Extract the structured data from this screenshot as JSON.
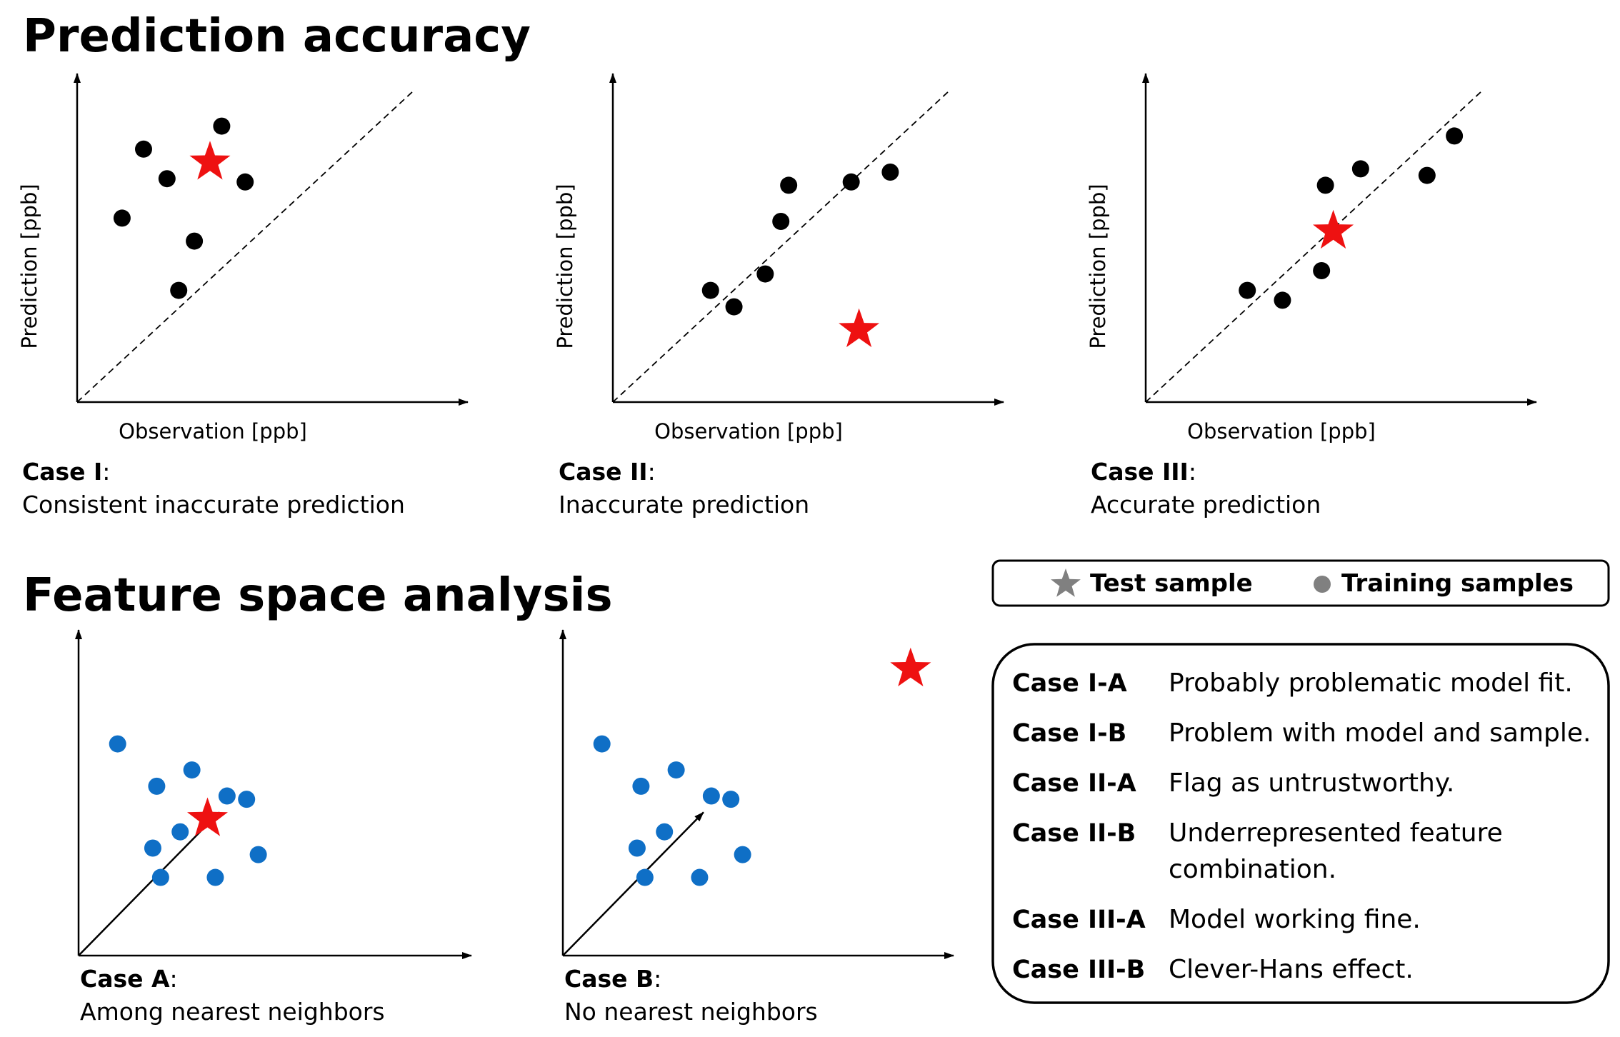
{
  "prediction": {
    "title": "Prediction accuracy",
    "panels": [
      {
        "xlabel": "Observation [ppb]",
        "ylabel": "Prediction [ppb]",
        "case_name": "Case I",
        "case_desc": "Consistent inaccurate prediction",
        "points": [
          [
            0.115,
            0.56
          ],
          [
            0.17,
            0.77
          ],
          [
            0.23,
            0.68
          ],
          [
            0.3,
            0.49
          ],
          [
            0.37,
            0.84
          ],
          [
            0.43,
            0.67
          ],
          [
            0.26,
            0.34
          ]
        ],
        "star": [
          0.34,
          0.73
        ]
      },
      {
        "xlabel": "Observation [ppb]",
        "ylabel": "Prediction [ppb]",
        "case_name": "Case II",
        "case_desc": "Inaccurate prediction",
        "points": [
          [
            0.25,
            0.34
          ],
          [
            0.31,
            0.29
          ],
          [
            0.39,
            0.39
          ],
          [
            0.43,
            0.55
          ],
          [
            0.45,
            0.66
          ],
          [
            0.61,
            0.67
          ],
          [
            0.71,
            0.7
          ]
        ],
        "star": [
          0.63,
          0.22
        ]
      },
      {
        "xlabel": "Observation [ppb]",
        "ylabel": "Prediction [ppb]",
        "case_name": "Case III",
        "case_desc": "Accurate prediction",
        "points": [
          [
            0.26,
            0.34
          ],
          [
            0.35,
            0.31
          ],
          [
            0.45,
            0.4
          ],
          [
            0.46,
            0.66
          ],
          [
            0.55,
            0.71
          ],
          [
            0.72,
            0.69
          ],
          [
            0.79,
            0.81
          ]
        ],
        "star": [
          0.48,
          0.52
        ]
      }
    ]
  },
  "feature": {
    "title": "Feature space analysis",
    "panels": [
      {
        "case_name": "Case A",
        "case_desc": "Among nearest neighbors",
        "points": [
          [
            0.1,
            0.65
          ],
          [
            0.2,
            0.52
          ],
          [
            0.29,
            0.57
          ],
          [
            0.38,
            0.49
          ],
          [
            0.43,
            0.48
          ],
          [
            0.26,
            0.38
          ],
          [
            0.19,
            0.33
          ],
          [
            0.21,
            0.24
          ],
          [
            0.35,
            0.24
          ],
          [
            0.46,
            0.31
          ]
        ],
        "star": [
          0.33,
          0.42
        ],
        "arrow_to": [
          0.36,
          0.44
        ]
      },
      {
        "case_name": "Case B",
        "case_desc": "No nearest neighbors",
        "points": [
          [
            0.1,
            0.65
          ],
          [
            0.2,
            0.52
          ],
          [
            0.29,
            0.57
          ],
          [
            0.38,
            0.49
          ],
          [
            0.43,
            0.48
          ],
          [
            0.26,
            0.38
          ],
          [
            0.19,
            0.33
          ],
          [
            0.21,
            0.24
          ],
          [
            0.35,
            0.24
          ],
          [
            0.46,
            0.31
          ]
        ],
        "star": [
          0.89,
          0.88
        ],
        "arrow_to": [
          0.36,
          0.44
        ]
      }
    ]
  },
  "legend": {
    "test_label": "Test sample",
    "train_label": "Training samples",
    "test_icon": "star-icon",
    "train_icon": "circle-icon"
  },
  "cases_table": [
    {
      "key": "Case I-A",
      "lines": [
        "Probably problematic model fit."
      ]
    },
    {
      "key": "Case I-B",
      "lines": [
        "Problem with model and sample."
      ]
    },
    {
      "key": "Case II-A",
      "lines": [
        "Flag as untrustworthy."
      ]
    },
    {
      "key": "Case II-B",
      "lines": [
        "Underrepresented feature",
        "combination."
      ]
    },
    {
      "key": "Case III-A",
      "lines": [
        "Model working fine."
      ]
    },
    {
      "key": "Case III-B",
      "lines": [
        "Clever-Hans effect."
      ]
    }
  ],
  "colors": {
    "training_point_prediction": "#000000",
    "training_point_feature": "#0f6fc6",
    "test_star": "#ee1111",
    "legend_icon": "#808080"
  }
}
